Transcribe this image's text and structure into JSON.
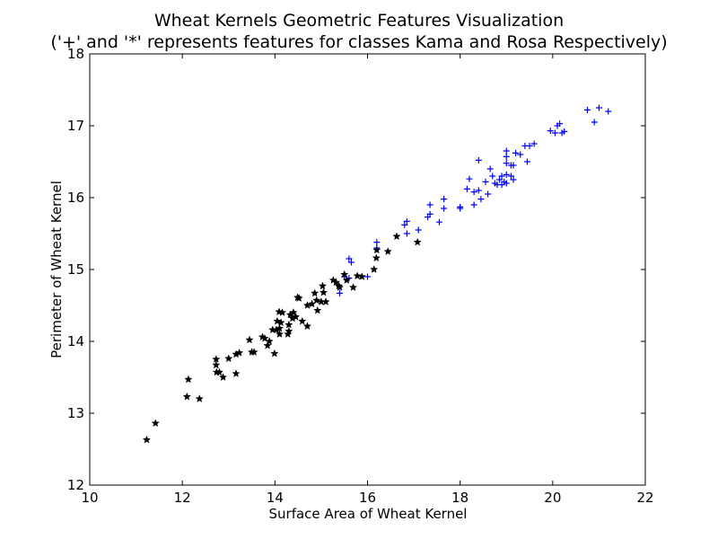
{
  "chart_data": {
    "type": "scatter",
    "title": "Wheat Kernels Geometric Features Visualization",
    "subtitle": "('+' and '*' represents features for classes Kama and Rosa Respectively)",
    "xlabel": "Surface Area of Wheat Kernel",
    "ylabel": "Perimeter of Wheat Kernel",
    "xlim": [
      10,
      22
    ],
    "ylim": [
      12,
      18
    ],
    "xticks": [
      10,
      12,
      14,
      16,
      18,
      20,
      22
    ],
    "yticks": [
      12,
      13,
      14,
      15,
      16,
      17,
      18
    ],
    "grid": false,
    "legend": "none",
    "series": [
      {
        "marker": "+",
        "color": "#0000ff",
        "points": [
          [
            15.4,
            14.67
          ],
          [
            15.5,
            14.9
          ],
          [
            15.6,
            15.15
          ],
          [
            15.65,
            15.1
          ],
          [
            15.6,
            14.88
          ],
          [
            16.0,
            14.9
          ],
          [
            16.2,
            15.38
          ],
          [
            16.2,
            15.3
          ],
          [
            16.8,
            15.62
          ],
          [
            16.85,
            15.67
          ],
          [
            16.85,
            15.5
          ],
          [
            17.1,
            15.55
          ],
          [
            17.3,
            15.73
          ],
          [
            17.35,
            15.77
          ],
          [
            17.35,
            15.9
          ],
          [
            17.55,
            15.66
          ],
          [
            17.65,
            15.85
          ],
          [
            17.65,
            15.98
          ],
          [
            18.0,
            15.85
          ],
          [
            18.0,
            15.87
          ],
          [
            18.15,
            16.12
          ],
          [
            18.2,
            16.26
          ],
          [
            18.3,
            16.08
          ],
          [
            18.3,
            15.9
          ],
          [
            18.4,
            16.52
          ],
          [
            18.4,
            16.1
          ],
          [
            18.45,
            15.98
          ],
          [
            18.55,
            16.22
          ],
          [
            18.6,
            16.05
          ],
          [
            18.65,
            16.4
          ],
          [
            18.7,
            16.3
          ],
          [
            18.75,
            16.2
          ],
          [
            18.8,
            16.18
          ],
          [
            18.85,
            16.25
          ],
          [
            18.9,
            16.3
          ],
          [
            18.9,
            16.18
          ],
          [
            18.95,
            16.22
          ],
          [
            19.0,
            16.65
          ],
          [
            19.0,
            16.57
          ],
          [
            19.0,
            16.48
          ],
          [
            19.0,
            16.32
          ],
          [
            19.0,
            16.2
          ],
          [
            19.1,
            16.45
          ],
          [
            19.1,
            16.3
          ],
          [
            19.15,
            16.25
          ],
          [
            19.15,
            16.45
          ],
          [
            19.2,
            16.62
          ],
          [
            19.3,
            16.6
          ],
          [
            19.4,
            16.72
          ],
          [
            19.45,
            16.5
          ],
          [
            19.5,
            16.72
          ],
          [
            19.6,
            16.75
          ],
          [
            19.95,
            16.93
          ],
          [
            20.05,
            16.9
          ],
          [
            20.1,
            17.0
          ],
          [
            20.15,
            17.03
          ],
          [
            20.2,
            16.9
          ],
          [
            20.25,
            16.92
          ],
          [
            20.75,
            17.22
          ],
          [
            20.9,
            17.05
          ],
          [
            21.0,
            17.25
          ],
          [
            21.2,
            17.2
          ]
        ]
      },
      {
        "marker": "*",
        "color": "#000000",
        "points": [
          [
            11.23,
            12.63
          ],
          [
            11.42,
            12.86
          ],
          [
            12.1,
            13.23
          ],
          [
            12.13,
            13.47
          ],
          [
            12.37,
            13.2
          ],
          [
            12.73,
            13.75
          ],
          [
            12.73,
            13.67
          ],
          [
            12.74,
            13.57
          ],
          [
            12.8,
            13.57
          ],
          [
            12.88,
            13.5
          ],
          [
            13.0,
            13.76
          ],
          [
            13.16,
            13.55
          ],
          [
            13.16,
            13.82
          ],
          [
            13.23,
            13.84
          ],
          [
            13.45,
            14.02
          ],
          [
            13.5,
            13.85
          ],
          [
            13.55,
            13.85
          ],
          [
            13.73,
            14.06
          ],
          [
            13.78,
            14.04
          ],
          [
            13.84,
            13.94
          ],
          [
            13.88,
            14.0
          ],
          [
            13.95,
            14.16
          ],
          [
            13.99,
            13.83
          ],
          [
            14.03,
            14.16
          ],
          [
            14.05,
            14.28
          ],
          [
            14.09,
            14.41
          ],
          [
            14.1,
            14.1
          ],
          [
            14.1,
            14.18
          ],
          [
            14.13,
            14.26
          ],
          [
            14.16,
            14.4
          ],
          [
            14.28,
            14.1
          ],
          [
            14.3,
            14.14
          ],
          [
            14.3,
            14.23
          ],
          [
            14.33,
            14.37
          ],
          [
            14.38,
            14.32
          ],
          [
            14.4,
            14.4
          ],
          [
            14.45,
            14.34
          ],
          [
            14.49,
            14.61
          ],
          [
            14.52,
            14.6
          ],
          [
            14.59,
            14.28
          ],
          [
            14.7,
            14.21
          ],
          [
            14.7,
            14.5
          ],
          [
            14.8,
            14.52
          ],
          [
            14.86,
            14.67
          ],
          [
            14.9,
            14.57
          ],
          [
            14.92,
            14.43
          ],
          [
            15.0,
            14.55
          ],
          [
            15.03,
            14.77
          ],
          [
            15.05,
            14.68
          ],
          [
            15.1,
            14.55
          ],
          [
            15.26,
            14.85
          ],
          [
            15.32,
            14.82
          ],
          [
            15.38,
            14.77
          ],
          [
            15.4,
            14.75
          ],
          [
            15.5,
            14.93
          ],
          [
            15.55,
            14.85
          ],
          [
            15.69,
            14.75
          ],
          [
            15.78,
            14.91
          ],
          [
            15.88,
            14.9
          ],
          [
            16.14,
            15.0
          ],
          [
            16.19,
            15.16
          ],
          [
            16.2,
            15.27
          ],
          [
            16.44,
            15.25
          ],
          [
            16.63,
            15.46
          ],
          [
            17.08,
            15.38
          ]
        ]
      }
    ]
  }
}
